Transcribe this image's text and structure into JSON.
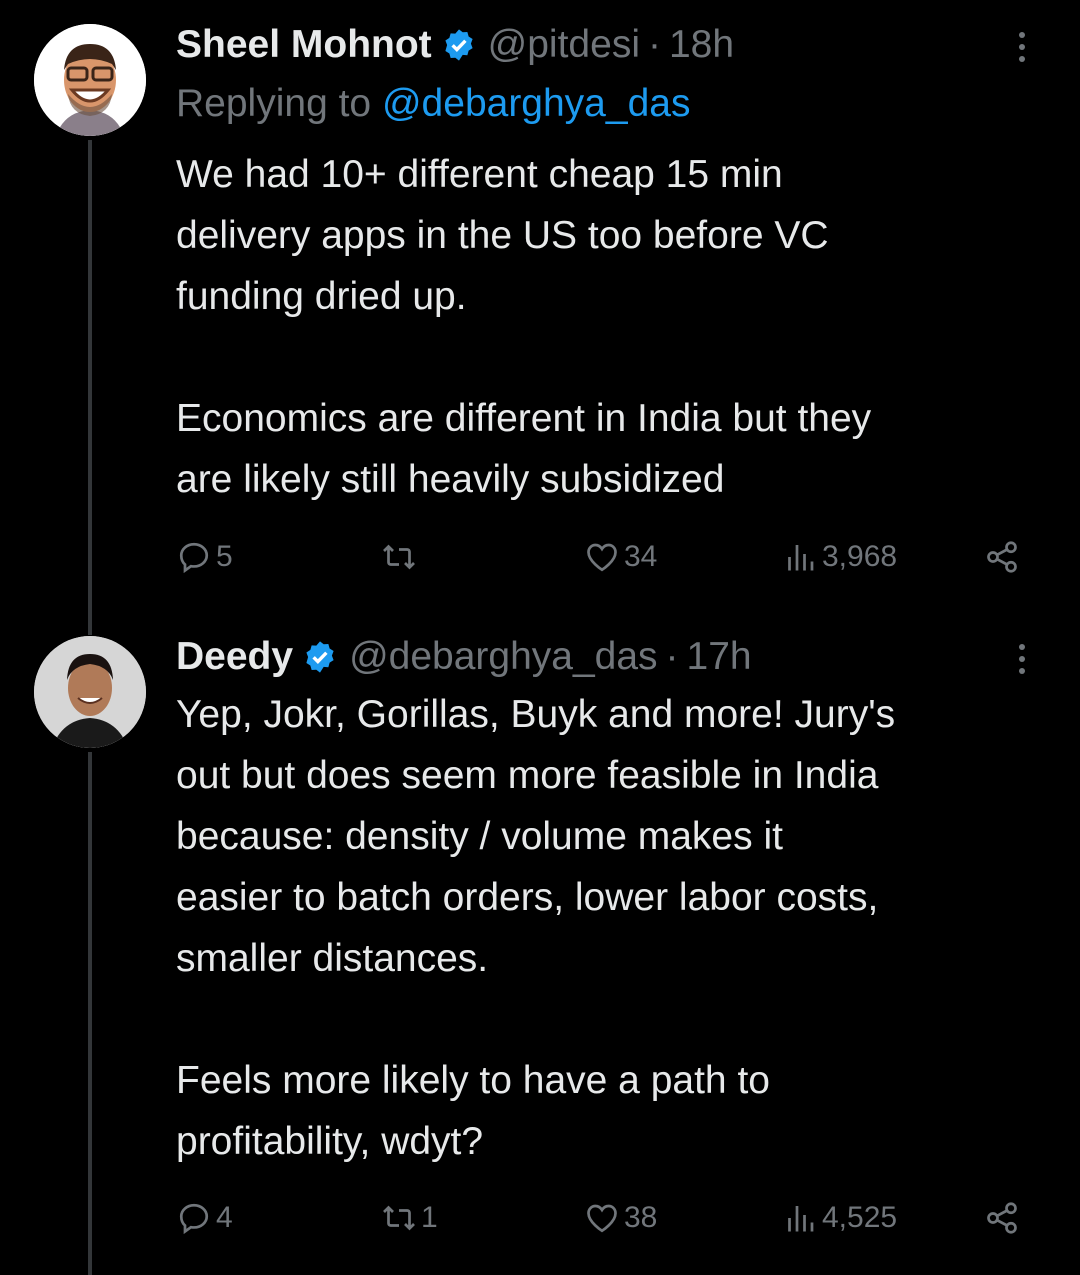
{
  "colors": {
    "background": "#000000",
    "text": "#e7e9ea",
    "muted": "#71767b",
    "link": "#1d9bf0",
    "verified": "#1d9bf0"
  },
  "tweets": [
    {
      "name": "Sheel Mohnot",
      "verified": true,
      "handle": "@pitdesi",
      "separator": "·",
      "time": "18h",
      "replying_prefix": "Replying to",
      "replying_handle": "@debarghya_das",
      "body_lines": [
        "We had 10+ different cheap 15 min",
        "delivery apps in the US too before VC",
        "funding dried up.",
        "",
        "Economics are different in India but they",
        "are likely still heavily subsidized"
      ],
      "replies": "5",
      "retweets": "",
      "likes": "34",
      "views": "3,968",
      "icons": [
        "reply-icon",
        "retweet-icon",
        "like-icon",
        "views-icon",
        "share-icon",
        "more-icon"
      ]
    },
    {
      "name": "Deedy",
      "verified": true,
      "handle": "@debarghya_das",
      "separator": "·",
      "time": "17h",
      "body_lines": [
        "Yep, Jokr, Gorillas, Buyk and more! Jury's",
        "out but does seem more feasible in India",
        "because: density / volume makes it",
        "easier to batch orders, lower labor costs,",
        "smaller distances.",
        "",
        "Feels more likely to have a path to",
        "profitability, wdyt?"
      ],
      "replies": "4",
      "retweets": "1",
      "likes": "38",
      "views": "4,525",
      "icons": [
        "reply-icon",
        "retweet-icon",
        "like-icon",
        "views-icon",
        "share-icon",
        "more-icon"
      ]
    }
  ]
}
